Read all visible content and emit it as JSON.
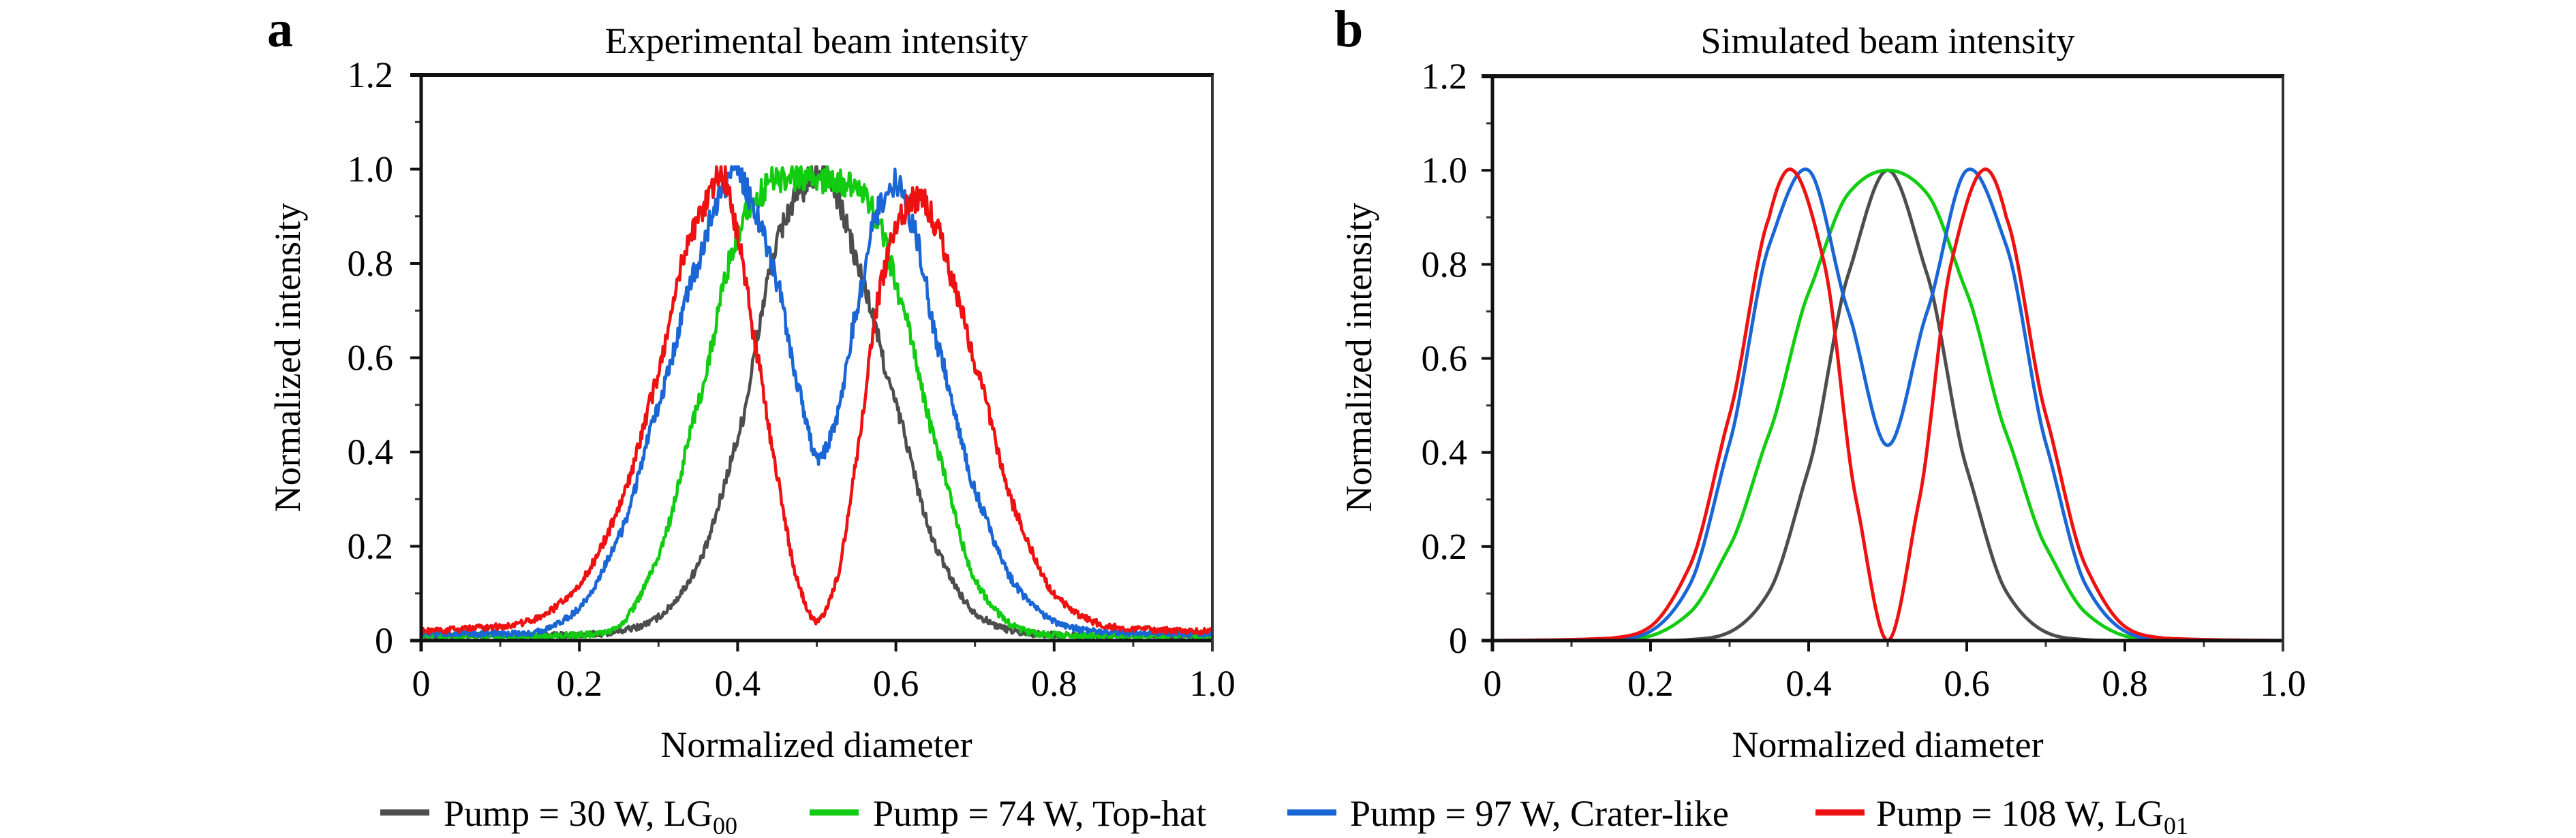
{
  "legend": {
    "items": [
      {
        "label": "Pump = 30 W, LG",
        "sub": "00",
        "color": "#4d4d4d"
      },
      {
        "label": "Pump = 74 W, Top-hat",
        "sub": "",
        "color": "#12cc12"
      },
      {
        "label": "Pump = 97 W, Crater-like",
        "sub": "",
        "color": "#1a66d4"
      },
      {
        "label": "Pump = 108 W, LG",
        "sub": "01",
        "color": "#ee1111"
      }
    ]
  },
  "chart_data": [
    {
      "panel": "a",
      "type": "line",
      "title": "Experimental beam intensity",
      "xlabel": "Normalized diameter",
      "ylabel": "Normalized intensity",
      "xlim": [
        0,
        1.0
      ],
      "ylim": [
        0,
        1.2
      ],
      "xticks": [
        "0",
        "0.2",
        "0.4",
        "0.6",
        "0.8",
        "1.0"
      ],
      "yticks": [
        "0",
        "0.2",
        "0.4",
        "0.6",
        "0.8",
        "1.0",
        "1.2"
      ],
      "grid": false,
      "noisy": true,
      "series": [
        {
          "name": "Pump = 30 W, LG00",
          "color": "#4d4d4d",
          "x": [
            0,
            0.1,
            0.2,
            0.25,
            0.3,
            0.35,
            0.4,
            0.45,
            0.48,
            0.5,
            0.51,
            0.525,
            0.55,
            0.6,
            0.65,
            0.7,
            0.75,
            0.8,
            0.9,
            1.0
          ],
          "y": [
            0.01,
            0.01,
            0.012,
            0.02,
            0.05,
            0.16,
            0.43,
            0.84,
            0.95,
            0.99,
            1.0,
            0.94,
            0.8,
            0.5,
            0.2,
            0.06,
            0.02,
            0.012,
            0.01,
            0.01
          ]
        },
        {
          "name": "Pump = 74 W, Top-hat",
          "color": "#12cc12",
          "x": [
            0,
            0.1,
            0.2,
            0.25,
            0.3,
            0.35,
            0.4,
            0.425,
            0.45,
            0.5,
            0.55,
            0.575,
            0.6,
            0.65,
            0.7,
            0.75,
            0.8,
            0.9,
            1.0
          ],
          "y": [
            0.01,
            0.01,
            0.012,
            0.03,
            0.18,
            0.5,
            0.86,
            0.94,
            0.98,
            0.98,
            0.96,
            0.9,
            0.75,
            0.42,
            0.13,
            0.03,
            0.012,
            0.01,
            0.01
          ]
        },
        {
          "name": "Pump = 97 W, Crater-like",
          "color": "#1a66d4",
          "x": [
            0,
            0.1,
            0.15,
            0.2,
            0.25,
            0.3,
            0.35,
            0.375,
            0.4,
            0.425,
            0.45,
            0.475,
            0.5,
            0.525,
            0.55,
            0.575,
            0.6,
            0.625,
            0.65,
            0.7,
            0.75,
            0.8,
            0.85,
            0.9,
            1.0
          ],
          "y": [
            0.015,
            0.015,
            0.02,
            0.07,
            0.22,
            0.5,
            0.8,
            0.93,
            0.99,
            0.9,
            0.76,
            0.55,
            0.39,
            0.47,
            0.7,
            0.9,
            0.97,
            0.86,
            0.64,
            0.32,
            0.12,
            0.04,
            0.02,
            0.015,
            0.015
          ]
        },
        {
          "name": "Pump = 108 W, LG01",
          "color": "#ee1111",
          "x": [
            0,
            0.1,
            0.15,
            0.2,
            0.25,
            0.3,
            0.33,
            0.36,
            0.38,
            0.4,
            0.425,
            0.45,
            0.475,
            0.5,
            0.525,
            0.55,
            0.575,
            0.6,
            0.63,
            0.65,
            0.68,
            0.7,
            0.75,
            0.8,
            0.85,
            0.9,
            1.0
          ],
          "y": [
            0.02,
            0.03,
            0.05,
            0.12,
            0.28,
            0.56,
            0.8,
            0.93,
            0.99,
            0.86,
            0.6,
            0.35,
            0.13,
            0.04,
            0.13,
            0.38,
            0.7,
            0.88,
            0.94,
            0.88,
            0.72,
            0.58,
            0.28,
            0.1,
            0.04,
            0.025,
            0.02
          ]
        }
      ]
    },
    {
      "panel": "b",
      "type": "line",
      "title": "Simulated beam intensity",
      "xlabel": "Normalized diameter",
      "ylabel": "Normalized intensity",
      "xlim": [
        0,
        1.0
      ],
      "ylim": [
        0,
        1.2
      ],
      "xticks": [
        "0",
        "0.2",
        "0.4",
        "0.6",
        "0.8",
        "1.0"
      ],
      "yticks": [
        "0",
        "0.2",
        "0.4",
        "0.6",
        "0.8",
        "1.0",
        "1.2"
      ],
      "grid": false,
      "noisy": false,
      "series": [
        {
          "name": "Pump = 30 W, LG00",
          "color": "#4d4d4d",
          "x": [
            0,
            0.2,
            0.25,
            0.3,
            0.35,
            0.4,
            0.45,
            0.5,
            0.55,
            0.6,
            0.65,
            0.7,
            0.75,
            0.8,
            1.0
          ],
          "y": [
            0,
            0.0,
            0.002,
            0.018,
            0.104,
            0.366,
            0.778,
            1.0,
            0.778,
            0.366,
            0.104,
            0.018,
            0.002,
            0.0,
            0
          ]
        },
        {
          "name": "Pump = 74 W, Top-hat",
          "color": "#12cc12",
          "x": [
            0,
            0.15,
            0.2,
            0.25,
            0.3,
            0.35,
            0.4,
            0.45,
            0.5,
            0.55,
            0.6,
            0.65,
            0.7,
            0.75,
            0.8,
            0.85,
            1.0
          ],
          "y": [
            0,
            0.0,
            0.01,
            0.06,
            0.2,
            0.44,
            0.74,
            0.95,
            1.0,
            0.95,
            0.74,
            0.44,
            0.2,
            0.06,
            0.01,
            0.0,
            0
          ]
        },
        {
          "name": "Pump = 97 W, Crater-like",
          "color": "#1a66d4",
          "x": [
            0,
            0.15,
            0.2,
            0.25,
            0.3,
            0.35,
            0.4,
            0.45,
            0.5,
            0.55,
            0.6,
            0.65,
            0.7,
            0.75,
            0.8,
            0.85,
            1.0
          ],
          "y": [
            0,
            0.0,
            0.02,
            0.12,
            0.42,
            0.84,
            1.0,
            0.7,
            0.415,
            0.7,
            1.0,
            0.84,
            0.42,
            0.12,
            0.02,
            0.0,
            0
          ]
        },
        {
          "name": "Pump = 108 W, LG01",
          "color": "#ee1111",
          "x": [
            0,
            0.15,
            0.2,
            0.25,
            0.3,
            0.35,
            0.38,
            0.42,
            0.46,
            0.5,
            0.54,
            0.58,
            0.62,
            0.65,
            0.7,
            0.75,
            0.8,
            0.85,
            1.0
          ],
          "y": [
            0,
            0.005,
            0.03,
            0.16,
            0.48,
            0.9,
            1.0,
            0.8,
            0.3,
            0.0,
            0.3,
            0.8,
            1.0,
            0.9,
            0.48,
            0.16,
            0.03,
            0.005,
            0
          ]
        }
      ]
    }
  ]
}
